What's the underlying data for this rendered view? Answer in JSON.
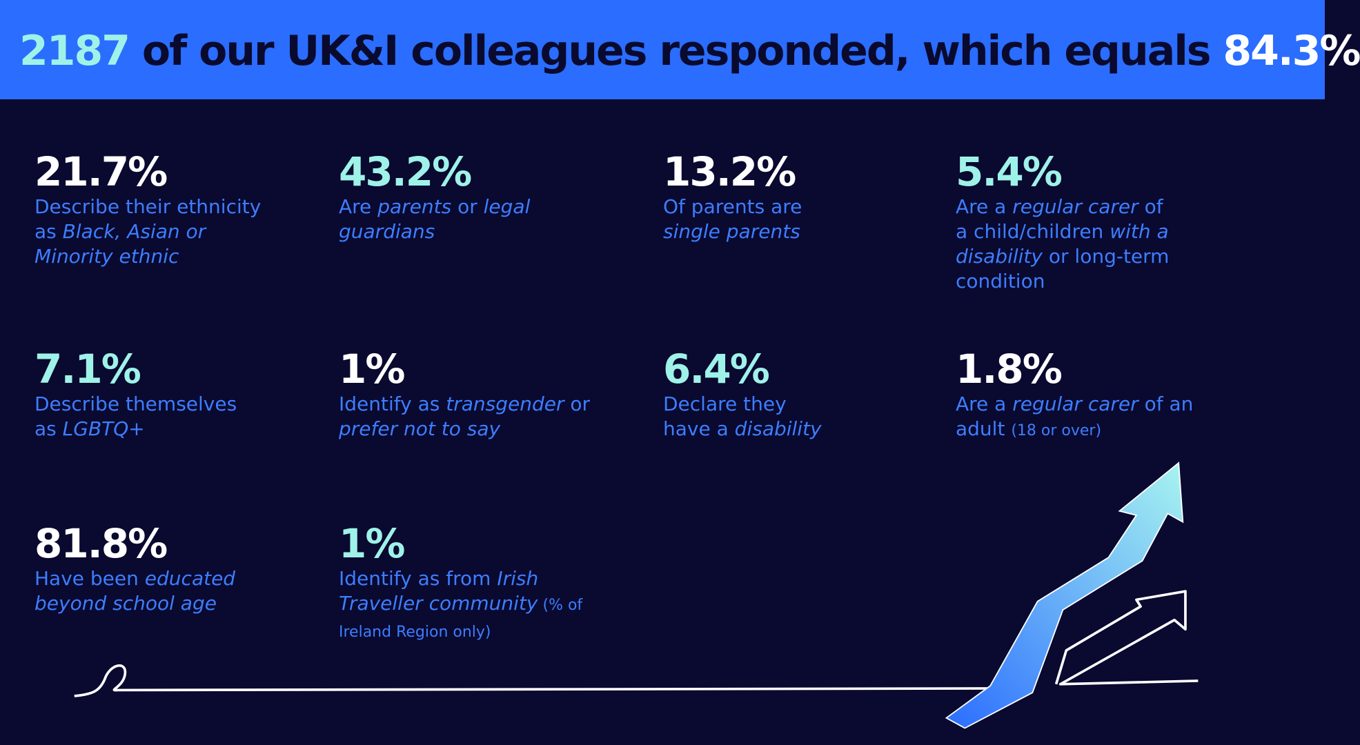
{
  "header": {
    "title": [
      {
        "text": "2187",
        "color": "#9ff2e8"
      },
      {
        "text": " of our UK&I colleagues responded, which equals ",
        "color": "#0a0a2e"
      },
      {
        "text": "84.3%",
        "color": "#ffffff"
      }
    ]
  },
  "stats": [
    {
      "value": "21.7%",
      "color": "#ffffff",
      "description": [
        {
          "text": "Describe their ethnicity as ",
          "style": "normal"
        },
        {
          "text": "Black, Asian or Minority ethnic",
          "style": "italic"
        }
      ]
    },
    {
      "value": "43.2%",
      "color": "#9ff2e8",
      "description": [
        {
          "text": "Are ",
          "style": "normal"
        },
        {
          "text": "parents",
          "style": "italic"
        },
        {
          "text": " or ",
          "style": "normal"
        },
        {
          "text": "legal guardians",
          "style": "italic"
        }
      ]
    },
    {
      "value": "13.2%",
      "color": "#ffffff",
      "description": [
        {
          "text": "Of parents are ",
          "style": "normal"
        },
        {
          "text": "single parents",
          "style": "italic"
        }
      ]
    },
    {
      "value": "5.4%",
      "color": "#9ff2e8",
      "description": [
        {
          "text": "Are a ",
          "style": "normal"
        },
        {
          "text": "regular carer",
          "style": "italic"
        },
        {
          "text": " of a child/children ",
          "style": "normal"
        },
        {
          "text": "with a disability",
          "style": "italic"
        },
        {
          "text": " or long-term condition",
          "style": "normal"
        }
      ]
    },
    {
      "value": "7.1%",
      "color": "#9ff2e8",
      "description": [
        {
          "text": "Describe themselves as ",
          "style": "normal"
        },
        {
          "text": "LGBTQ+",
          "style": "italic"
        }
      ]
    },
    {
      "value": "1%",
      "color": "#ffffff",
      "description": [
        {
          "text": "Identify as ",
          "style": "normal"
        },
        {
          "text": "transgender",
          "style": "italic"
        },
        {
          "text": " or ",
          "style": "normal"
        },
        {
          "text": "prefer not to say",
          "style": "italic"
        }
      ]
    },
    {
      "value": "6.4%",
      "color": "#9ff2e8",
      "description": [
        {
          "text": "Declare they have a ",
          "style": "normal"
        },
        {
          "text": "disability",
          "style": "italic"
        }
      ]
    },
    {
      "value": "1.8%",
      "color": "#ffffff",
      "description": [
        {
          "text": "Are a ",
          "style": "normal"
        },
        {
          "text": "regular carer",
          "style": "italic"
        },
        {
          "text": " of an adult ",
          "style": "normal"
        },
        {
          "text": "(18 or over)",
          "style": "small"
        }
      ]
    },
    {
      "value": "81.8%",
      "color": "#ffffff",
      "description": [
        {
          "text": "Have been ",
          "style": "normal"
        },
        {
          "text": "educated beyond school age",
          "style": "italic"
        }
      ]
    },
    {
      "value": "1%",
      "color": "#9ff2e8",
      "description": [
        {
          "text": "Identify as from ",
          "style": "normal"
        },
        {
          "text": "Irish Traveller community",
          "style": "italic"
        },
        {
          "text": " (% of Ireland Region only)",
          "style": "small"
        }
      ]
    }
  ]
}
